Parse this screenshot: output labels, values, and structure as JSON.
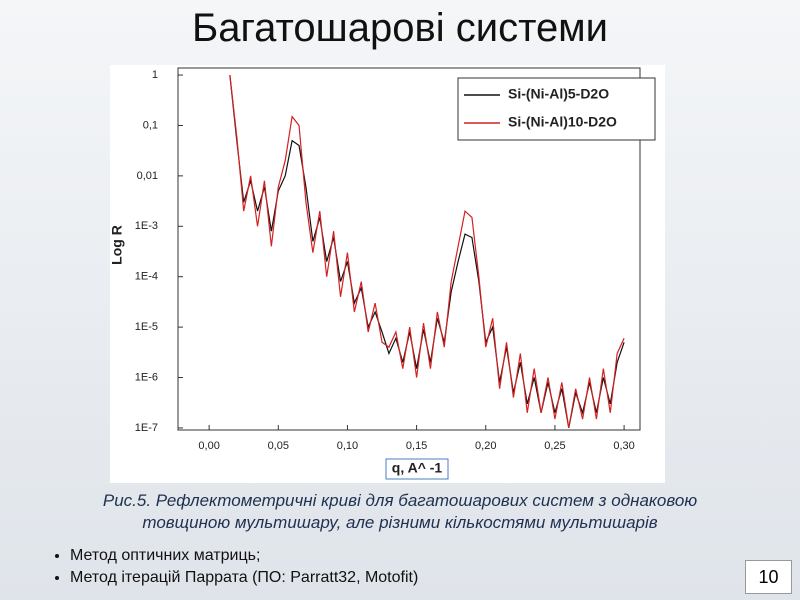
{
  "slide_title": "Багатошарові системи",
  "caption": [
    "Рис.5. Рефлектометричні криві для багатошарових систем з однаковою",
    "товщиною мультишару, але різними кількостями мультишарів"
  ],
  "bullets": [
    "Метод оптичних матриць;",
    "Метод ітерацій Паррата (ПО: Parratt32, Motofit)"
  ],
  "page_number": "10",
  "chart_data": {
    "type": "line",
    "log_y": true,
    "xlabel": "q, A^ -1",
    "ylabel": "Log R",
    "legend": "upper right",
    "x": [
      0.015,
      0.02,
      0.025,
      0.03,
      0.035,
      0.04,
      0.045,
      0.05,
      0.055,
      0.06,
      0.065,
      0.07,
      0.075,
      0.08,
      0.085,
      0.09,
      0.095,
      0.1,
      0.105,
      0.11,
      0.115,
      0.12,
      0.125,
      0.13,
      0.135,
      0.14,
      0.145,
      0.15,
      0.155,
      0.16,
      0.165,
      0.17,
      0.175,
      0.18,
      0.185,
      0.19,
      0.195,
      0.2,
      0.205,
      0.21,
      0.215,
      0.22,
      0.225,
      0.23,
      0.235,
      0.24,
      0.245,
      0.25,
      0.255,
      0.26,
      0.265,
      0.27,
      0.275,
      0.28,
      0.285,
      0.29,
      0.295,
      0.3
    ],
    "series": [
      {
        "name": "Si-(Ni-Al)5-D2O",
        "color": "#111111",
        "values": [
          1,
          0.05,
          0.003,
          0.008,
          0.002,
          0.006,
          0.0008,
          0.005,
          0.01,
          0.05,
          0.04,
          0.006,
          0.0005,
          0.0015,
          0.0002,
          0.0006,
          8e-05,
          0.0002,
          3e-05,
          6e-05,
          1e-05,
          2e-05,
          8e-06,
          3e-06,
          6e-06,
          2e-06,
          8e-06,
          1.5e-06,
          9e-06,
          2e-06,
          1.5e-05,
          5e-06,
          5e-05,
          0.0002,
          0.0007,
          0.0006,
          8e-05,
          5e-06,
          1e-05,
          8e-07,
          4e-06,
          5e-07,
          2e-06,
          3e-07,
          1e-06,
          2e-07,
          8e-07,
          2e-07,
          6e-07,
          1e-07,
          5e-07,
          2e-07,
          8e-07,
          2e-07,
          1e-06,
          3e-07,
          2e-06,
          5e-06
        ]
      },
      {
        "name": "Si-(Ni-Al)10-D2O",
        "color": "#d42020",
        "values": [
          1,
          0.06,
          0.002,
          0.01,
          0.001,
          0.008,
          0.0004,
          0.006,
          0.02,
          0.15,
          0.1,
          0.003,
          0.0003,
          0.002,
          0.0001,
          0.0008,
          4e-05,
          0.0003,
          2e-05,
          8e-05,
          8e-06,
          3e-05,
          5e-06,
          4e-06,
          8e-06,
          1.5e-06,
          1e-05,
          1e-06,
          1.2e-05,
          1.5e-06,
          2e-05,
          4e-06,
          8e-05,
          0.0004,
          0.002,
          0.0015,
          0.0001,
          4e-06,
          1.5e-05,
          6e-07,
          5e-06,
          4e-07,
          3e-06,
          2e-07,
          1.5e-06,
          2e-07,
          1e-06,
          1.5e-07,
          8e-07,
          1e-07,
          6e-07,
          1.5e-07,
          1e-06,
          1.5e-07,
          1.5e-06,
          2e-07,
          3e-06,
          6e-06
        ]
      }
    ],
    "xlim": [
      -0.0225,
      0.3115
    ],
    "xticks": [
      {
        "value": 0,
        "label": "0,00"
      },
      {
        "value": 0.05,
        "label": "0,05"
      },
      {
        "value": 0.1,
        "label": "0,10"
      },
      {
        "value": 0.15,
        "label": "0,15"
      },
      {
        "value": 0.2,
        "label": "0,20"
      },
      {
        "value": 0.25,
        "label": "0,25"
      },
      {
        "value": 0.3,
        "label": "0,30"
      }
    ],
    "ylim": [
      9.1e-08,
      1.38
    ],
    "yticks": [
      1,
      {
        "value": 0.1,
        "label": "0,1"
      },
      {
        "value": 0.01,
        "label": "0,01"
      },
      {
        "value": 0.001,
        "label": "1E-3"
      },
      {
        "value": 0.0001,
        "label": "1E-4"
      },
      {
        "value": 1e-05,
        "label": "1E-5"
      },
      {
        "value": 1e-06,
        "label": "1E-6"
      },
      {
        "value": 1e-07,
        "label": "1E-7"
      }
    ]
  }
}
